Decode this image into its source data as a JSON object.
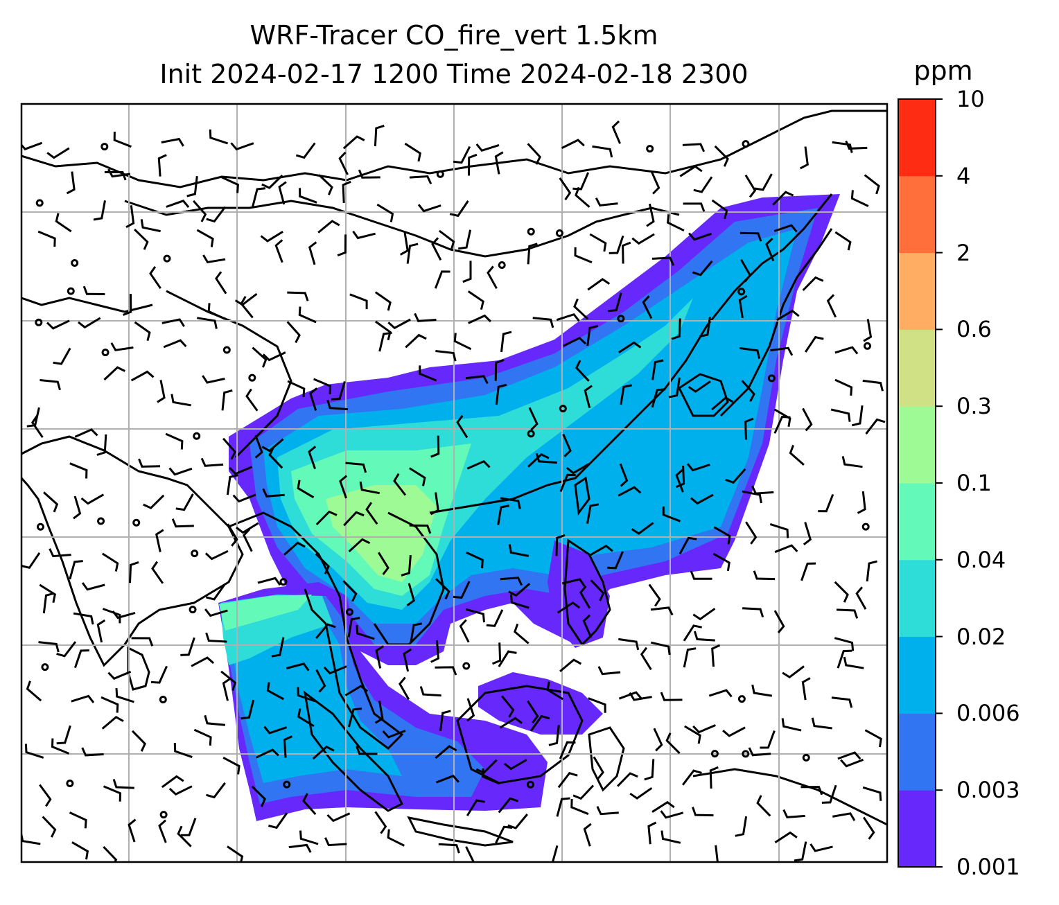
{
  "title": {
    "line1": "WRF-Tracer CO_fire_vert 1.5km",
    "line2": "Init 2024-02-17 1200 Time 2024-02-18 2300"
  },
  "colorbar": {
    "unit": "ppm",
    "ticks": [
      "0.001",
      "0.003",
      "0.006",
      "0.02",
      "0.04",
      "0.1",
      "0.3",
      "0.6",
      "2",
      "4",
      "10"
    ],
    "colors": [
      "#6628fb",
      "#3275f3",
      "#00b0ec",
      "#2edcd8",
      "#62f9b9",
      "#9efa94",
      "#cfe184",
      "#ffad62",
      "#ff6f3b",
      "#ff2c14"
    ]
  },
  "chart_data": {
    "type": "heatmap",
    "title": "WRF-Tracer CO_fire_vert 1.5km",
    "subtitle": "Init 2024-02-17 1200 Time 2024-02-18 2300",
    "colorbar_label": "ppm",
    "levels": [
      0.001,
      0.003,
      0.006,
      0.02,
      0.04,
      0.1,
      0.3,
      0.6,
      2,
      4,
      10
    ],
    "grid": true,
    "overlay": "wind barbs",
    "map": "coastlines and country borders"
  }
}
